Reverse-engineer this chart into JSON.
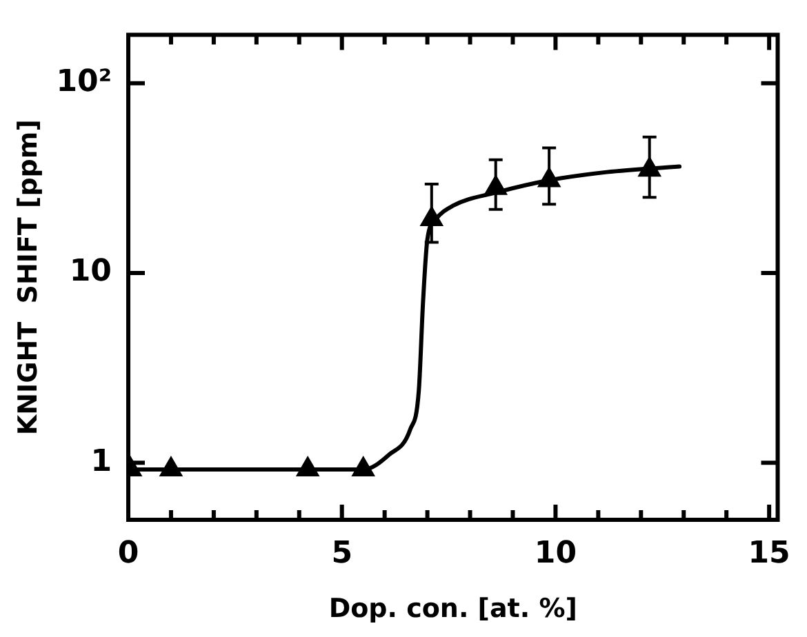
{
  "chart_data": {
    "type": "scatter",
    "xlabel": "Dop. con. [at. %]",
    "ylabel": "KNIGHT  SHIFT [ppm]",
    "log": "y",
    "grid": false,
    "legend": false,
    "marker": "triangle",
    "xlim": [
      0,
      15.2
    ],
    "ylim": [
      0.5,
      180
    ],
    "xticks": [
      0,
      {
        "value": 1,
        "label": null
      },
      {
        "value": 2,
        "label": null
      },
      {
        "value": 3,
        "label": null
      },
      {
        "value": 4,
        "label": null
      },
      5,
      {
        "value": 6,
        "label": null
      },
      {
        "value": 7,
        "label": null
      },
      {
        "value": 8,
        "label": null
      },
      {
        "value": 9,
        "label": null
      },
      10,
      {
        "value": 11,
        "label": null
      },
      {
        "value": 12,
        "label": null
      },
      {
        "value": 13,
        "label": null
      },
      {
        "value": 14,
        "label": null
      },
      15
    ],
    "yticks": [
      1,
      10,
      {
        "value": 100,
        "label": "10²"
      }
    ],
    "series": [
      {
        "type": "line",
        "color": "#000000",
        "marker": "none",
        "line_style": "solid",
        "x": [
          0,
          5.5,
          6.1,
          6.6,
          6.8,
          6.9,
          7.0,
          7.2,
          7.6,
          8.6,
          9.85,
          11.2,
          12.9
        ],
        "values": [
          0.92,
          0.92,
          1.1,
          1.5,
          2.4,
          7.1,
          15,
          19.2,
          22.6,
          26.5,
          30.8,
          34,
          36.4
        ]
      },
      {
        "type": "scatter",
        "color": "#000000",
        "x": [
          0.05,
          1.0,
          4.2,
          5.5,
          7.1,
          8.6,
          9.85,
          12.2
        ],
        "values": [
          0.92,
          0.92,
          0.92,
          0.92,
          19.2,
          28,
          30.8,
          35
        ],
        "errors": [
          null,
          null,
          null,
          null,
          [
            14.5,
            29.4
          ],
          [
            21.6,
            39.5
          ],
          [
            23,
            45.6
          ],
          [
            25,
            52
          ]
        ]
      }
    ]
  }
}
